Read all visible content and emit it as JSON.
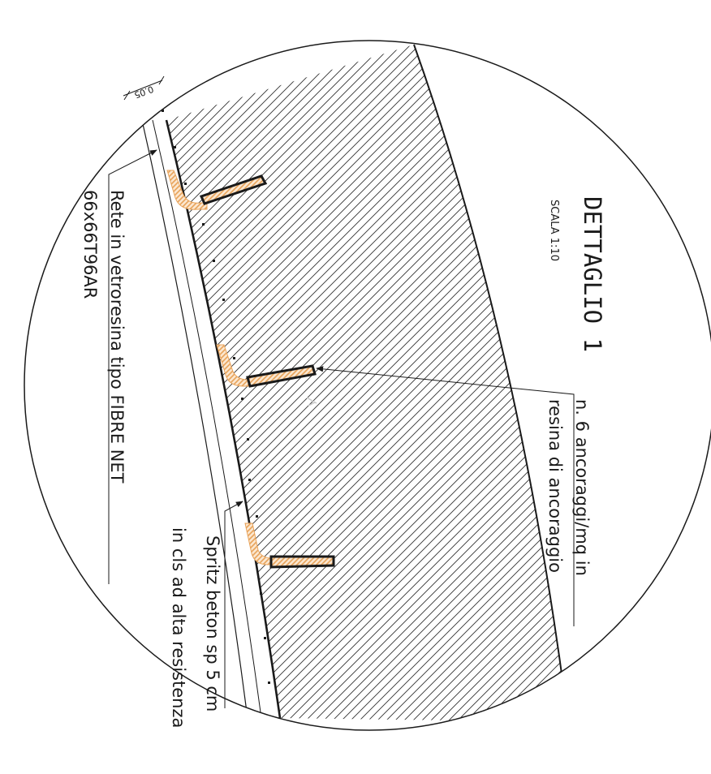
{
  "detail": {
    "title": "DETTAGLIO 1",
    "scale": "SCALA 1:10"
  },
  "callouts": {
    "anchors_line1": "n. 6 ancoraggi/mq in",
    "anchors_line2": "resina di ancoraggio",
    "mesh_line1": "Rete in vetroresina tipo FIBRE NET",
    "mesh_line2": "66x66T96AR",
    "spritz_line1": "Spritz beton sp 5 cm",
    "spritz_line2": "in cls ad alta resistenza"
  },
  "dimension": {
    "thickness": "0.05"
  },
  "colors": {
    "line": "#1a1a1a",
    "hatch": "#333333",
    "anchor_resin": "#e8a35a"
  }
}
